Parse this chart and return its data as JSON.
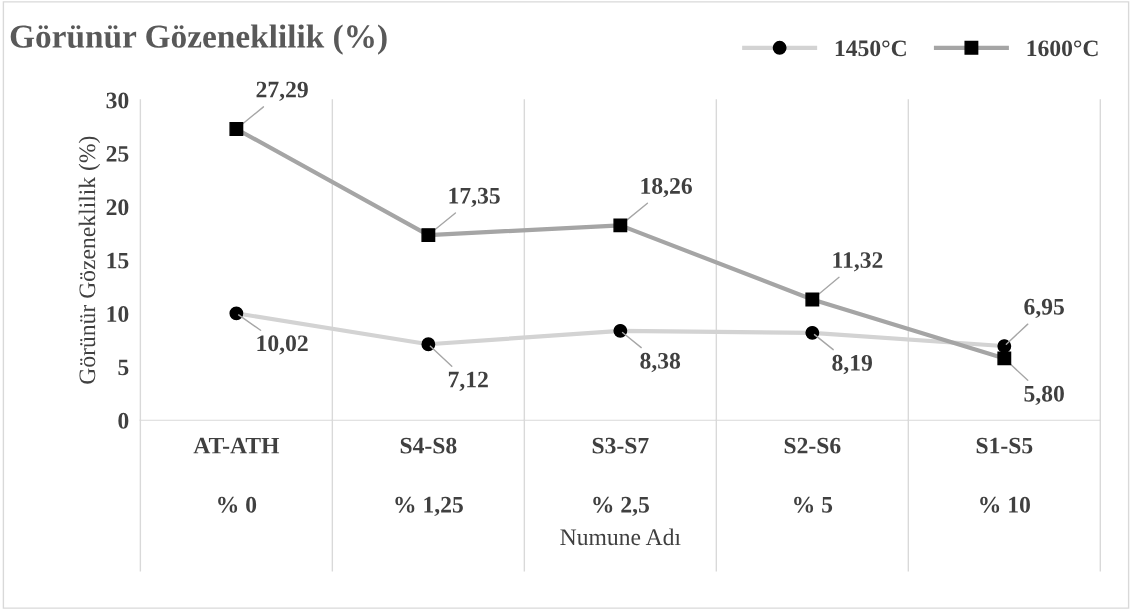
{
  "chart_data": {
    "type": "line",
    "title": "Görünür Gözeneklilik (%)",
    "xlabel": "Numune Adı",
    "ylabel": "Görünür Gözeneklilik (%)",
    "categories": [
      "AT-ATH\n% 0",
      "S4-S8\n% 1,25",
      "S3-S7\n% 2,5",
      "S2-S6\n% 5",
      "S1-S5\n% 10"
    ],
    "series": [
      {
        "name": "1450°C",
        "color": "#d3d3d3",
        "values": [
          10.02,
          7.12,
          8.38,
          8.19,
          6.95
        ],
        "value_labels": [
          "10,02",
          "7,12",
          "8,38",
          "8,19",
          "6,95"
        ],
        "marker": "circle"
      },
      {
        "name": "1600°C",
        "color": "#a5a5a5",
        "values": [
          27.29,
          17.35,
          18.26,
          11.32,
          5.8
        ],
        "value_labels": [
          "27,29",
          "17,35",
          "18,26",
          "11,32",
          "5,80"
        ],
        "marker": "square"
      }
    ],
    "ylim": [
      0,
      30
    ],
    "yticks": [
      0,
      5,
      10,
      15,
      20,
      25,
      30
    ],
    "grid": "x",
    "legend": "top right",
    "line_style": "solid"
  }
}
